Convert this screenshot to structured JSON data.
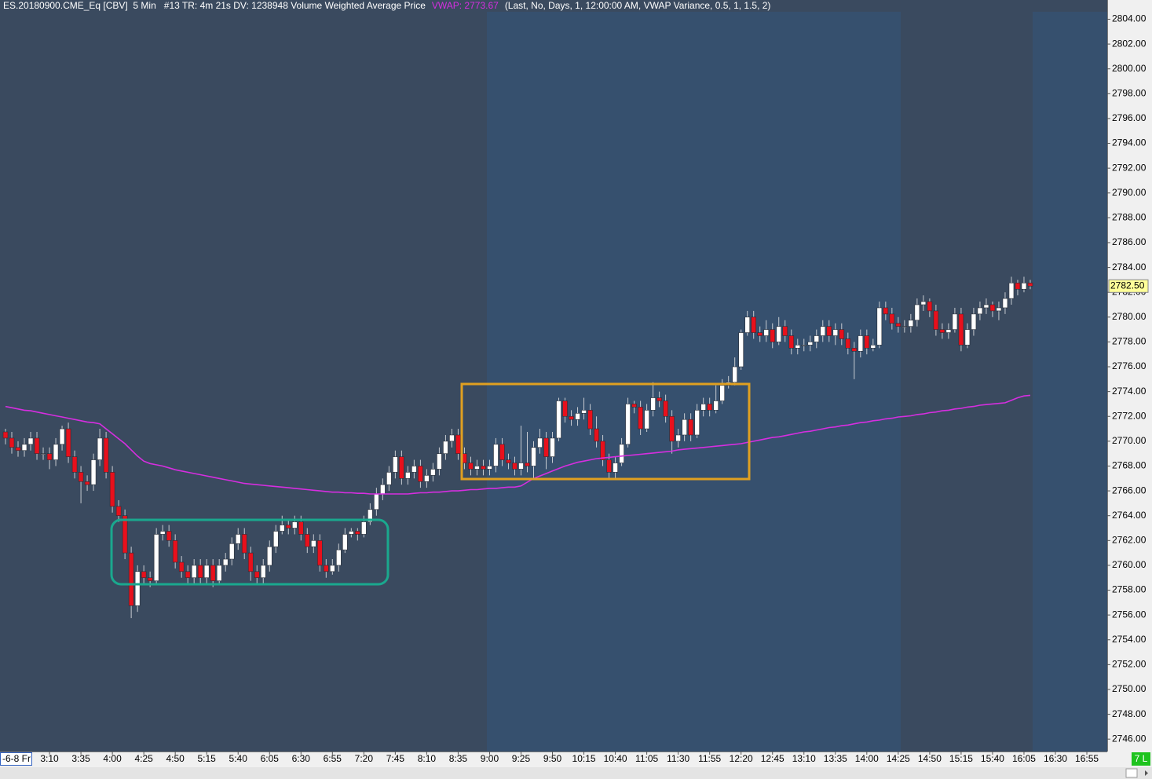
{
  "header": {
    "instrument": "ES.20180900.CME_Eq [CBV]  5 Min   #13 TR: 4m 21s DV: 1238948 Volume Weighted Average Price",
    "vwap_readout": "VWAP: 2773.67",
    "parameters": "(Last, No, Days, 1, 12:00:00 AM, VWAP Variance, 0.5, 1, 1.5, 2)"
  },
  "status": "7 L",
  "chart_data": {
    "type": "candlestick",
    "date_label": "-6-8 Fr",
    "categories": [
      null,
      null,
      null,
      null,
      null,
      null,
      null,
      "3:10",
      null,
      null,
      null,
      null,
      "3:35",
      null,
      null,
      null,
      null,
      "4:00",
      null,
      null,
      null,
      null,
      "4:25",
      null,
      null,
      null,
      null,
      "4:50",
      null,
      null,
      null,
      null,
      "5:15",
      null,
      null,
      null,
      null,
      "5:40",
      null,
      null,
      null,
      null,
      "6:05",
      null,
      null,
      null,
      null,
      "6:30",
      null,
      null,
      null,
      null,
      "6:55",
      null,
      null,
      null,
      null,
      "7:20",
      null,
      null,
      null,
      null,
      "7:45",
      null,
      null,
      null,
      null,
      "8:10",
      null,
      null,
      null,
      null,
      "8:35",
      null,
      null,
      null,
      null,
      "9:00",
      null,
      null,
      null,
      null,
      "9:25",
      null,
      null,
      null,
      null,
      "9:50",
      null,
      null,
      null,
      null,
      "10:15",
      null,
      null,
      null,
      null,
      "10:40",
      null,
      null,
      null,
      null,
      "11:05",
      null,
      null,
      null,
      null,
      "11:30",
      null,
      null,
      null,
      null,
      "11:55",
      null,
      null,
      null,
      null,
      "12:20",
      null,
      null,
      null,
      null,
      "12:45",
      null,
      null,
      null,
      null,
      "13:10",
      null,
      null,
      null,
      null,
      "13:35",
      null,
      null,
      null,
      null,
      "14:00",
      null,
      null,
      null,
      null,
      "14:25",
      null,
      null,
      null,
      null,
      "14:50",
      null,
      null,
      null,
      null,
      "15:15",
      null,
      null,
      null,
      null,
      "15:40",
      null,
      null,
      null,
      null,
      "16:05",
      null,
      null,
      null,
      null,
      "16:30",
      null,
      null,
      null,
      null,
      "16:55"
    ],
    "open": [
      2770.75,
      2770.25,
      2769.5,
      2769.25,
      2769.75,
      2770.25,
      2769,
      2769,
      2768.5,
      2769.75,
      2771,
      2768.75,
      2767.5,
      2766.75,
      2766.5,
      2768.5,
      2770.25,
      2767.5,
      2764.75,
      2764,
      2761,
      2756.75,
      2759.5,
      2759,
      2758.75,
      2762.5,
      2762.75,
      2762,
      2760.25,
      2759.5,
      2759,
      2760,
      2759,
      2760,
      2758.75,
      2760,
      2760.5,
      2761.75,
      2762.5,
      2761,
      2759.5,
      2759,
      2760,
      2761.5,
      2762.75,
      2763.25,
      2763,
      2763.5,
      2762.5,
      2761.5,
      2762,
      2760,
      2759.5,
      2760,
      2761.25,
      2762.5,
      2762.75,
      2762.5,
      2763.5,
      2764.5,
      2765.75,
      2766.5,
      2767.5,
      2768.75,
      2767,
      2767.5,
      2768,
      2766.75,
      2767.25,
      2767.75,
      2769,
      2770,
      2770.5,
      2769,
      2768.25,
      2767.75,
      2768,
      2767.75,
      2768,
      2769.75,
      2768.5,
      2768.25,
      2767.75,
      2768.25,
      2768,
      2769.5,
      2770.25,
      2768.75,
      2770.25,
      2773.25,
      2772,
      2771.75,
      2772.25,
      2772.5,
      2771,
      2770,
      2768.5,
      2767.5,
      2768.25,
      2769.75,
      2773,
      2772.75,
      2771,
      2772.5,
      2773.5,
      2773.25,
      2772,
      2770,
      2770.5,
      2771.75,
      2770.5,
      2772.5,
      2773,
      2772.5,
      2773.25,
      2774.5,
      2774.75,
      2776,
      2778.75,
      2780,
      2778.75,
      2778.5,
      2779,
      2778,
      2779.25,
      2778.5,
      2777.5,
      2777.75,
      2777.75,
      2778,
      2778.5,
      2779.25,
      2778.5,
      2779,
      2778.25,
      2777.5,
      2777.25,
      2778.5,
      2777.5,
      2777.75,
      2780.75,
      2780.25,
      2779.5,
      2779.25,
      2779.25,
      2779.75,
      2781,
      2781.25,
      2780.5,
      2779,
      2778.75,
      2779,
      2780.25,
      2777.75,
      2779,
      2780.25,
      2780.75,
      2781,
      2780.5,
      2780.75,
      2781.5,
      2782.75,
      2782.25,
      2782.75,
      null,
      null,
      null,
      null,
      null,
      null,
      null,
      null,
      null
    ],
    "high": [
      2771,
      2770.75,
      2770,
      2770.25,
      2770.75,
      2770.75,
      2769.5,
      2769.5,
      2770.25,
      2771.25,
      2771.5,
      2769.25,
      2768,
      2767.25,
      2769,
      2771,
      2770.75,
      2768,
      2765.25,
      2764.5,
      2761.5,
      2760,
      2760,
      2759.5,
      2763,
      2763.25,
      2763.25,
      2762.5,
      2760.75,
      2760,
      2760.5,
      2760.5,
      2760.5,
      2760.5,
      2760.5,
      2761,
      2762.25,
      2763,
      2763,
      2761.5,
      2760,
      2760.5,
      2762,
      2763.25,
      2764,
      2763.75,
      2764,
      2764,
      2763,
      2762.5,
      2762.5,
      2760.5,
      2760.5,
      2761.75,
      2763,
      2763,
      2763,
      2764,
      2765,
      2766.25,
      2767,
      2768,
      2769.25,
      2769.25,
      2768,
      2768.5,
      2768.5,
      2767.75,
      2768.25,
      2769.5,
      2770.5,
      2771,
      2771,
      2769.5,
      2768.75,
      2768.5,
      2768.5,
      2768.5,
      2770.25,
      2770.25,
      2769,
      2768.75,
      2771.25,
      2770.75,
      2770,
      2771,
      2770.75,
      2770.75,
      2773.5,
      2773.5,
      2772.5,
      2772.75,
      2773.5,
      2773,
      2772,
      2770.5,
      2769,
      2768.75,
      2770.25,
      2773.5,
      2773.25,
      2773.25,
      2773,
      2774.75,
      2774,
      2773.75,
      2772.5,
      2771,
      2772.25,
      2772.25,
      2773,
      2773.5,
      2773.5,
      2774.5,
      2775,
      2775.25,
      2776.75,
      2779,
      2780.5,
      2780.5,
      2779.25,
      2779.75,
      2779.5,
      2780,
      2779.75,
      2779,
      2778.25,
      2778.25,
      2778.5,
      2779,
      2779.75,
      2779.75,
      2779.5,
      2779.5,
      2778.75,
      2778,
      2779,
      2779,
      2778.25,
      2781.25,
      2781.25,
      2780.75,
      2780,
      2779.75,
      2780.25,
      2781.5,
      2781.75,
      2781.5,
      2781,
      2779.5,
      2779.5,
      2780.75,
      2780.75,
      2779.5,
      2780.75,
      2781.25,
      2781.5,
      2781.25,
      2781.25,
      2782,
      2783.25,
      2783,
      2783.25,
      2783,
      null,
      null,
      null,
      null,
      null,
      null,
      null,
      null,
      null
    ],
    "low": [
      2769.75,
      2769,
      2768.75,
      2768.75,
      2769.25,
      2768.5,
      2768.5,
      2767.75,
      2768,
      2769.25,
      2768.25,
      2767,
      2765,
      2766,
      2766,
      2768,
      2767,
      2764.25,
      2763.5,
      2760.5,
      2755.75,
      2756.25,
      2758.5,
      2758.25,
      2758.5,
      2762,
      2761.5,
      2759.75,
      2759,
      2758.5,
      2758.5,
      2758.5,
      2758.5,
      2758.25,
      2758.5,
      2759.5,
      2760,
      2761.25,
      2760.5,
      2758.75,
      2758.5,
      2758.5,
      2759.5,
      2761,
      2762.5,
      2762.5,
      2762.5,
      2762,
      2761,
      2761,
      2759.5,
      2759,
      2759.25,
      2759.5,
      2761,
      2762.25,
      2762,
      2762.25,
      2763.25,
      2764,
      2765.25,
      2766,
      2767,
      2766.5,
      2766.5,
      2767,
      2766.25,
      2766.25,
      2766.75,
      2767.25,
      2768.5,
      2769.5,
      2768.5,
      2767.75,
      2767.25,
      2767.25,
      2767.25,
      2767.25,
      2767.5,
      2768,
      2767.75,
      2767.25,
      2767.25,
      2767.5,
      2767,
      2769,
      2767.75,
      2768.25,
      2770,
      2771.5,
      2771.25,
      2771.25,
      2771.75,
      2770.5,
      2769.5,
      2768,
      2767,
      2767,
      2768,
      2769.5,
      2772.25,
      2770.5,
      2770.75,
      2772,
      2772.75,
      2771.5,
      2769,
      2769.5,
      2770,
      2770,
      2770.25,
      2772,
      2772,
      2772.25,
      2773,
      2774.25,
      2774.5,
      2775.75,
      2778.5,
      2778.25,
      2778,
      2778,
      2777.5,
      2777.75,
      2778,
      2777,
      2777,
      2777.25,
      2777.25,
      2777.5,
      2778,
      2778,
      2777.75,
      2777.75,
      2777,
      2775,
      2776.75,
      2777,
      2777.25,
      2777.5,
      2779.75,
      2779,
      2778.75,
      2778.75,
      2778.75,
      2779.25,
      2780.5,
      2780,
      2778.5,
      2778.25,
      2778.25,
      2778.75,
      2777.25,
      2777.5,
      2778.5,
      2779.75,
      2780.25,
      2780,
      2779.75,
      2780.25,
      2781,
      2781.75,
      2782,
      2782.25,
      null,
      null,
      null,
      null,
      null,
      null,
      null,
      null,
      null
    ],
    "close": [
      2770.25,
      2769.5,
      2769.25,
      2769.75,
      2770.25,
      2769,
      2769,
      2768.5,
      2769.75,
      2771,
      2768.75,
      2767.5,
      2766.75,
      2766.5,
      2768.5,
      2770.25,
      2767.5,
      2764.75,
      2764,
      2761,
      2756.75,
      2759.5,
      2759,
      2758.75,
      2762.5,
      2762.75,
      2762,
      2760.25,
      2759.5,
      2759,
      2760,
      2759,
      2760,
      2758.75,
      2760,
      2760.5,
      2761.75,
      2762.5,
      2761,
      2759.5,
      2759,
      2760,
      2761.5,
      2762.75,
      2763.25,
      2763,
      2763.5,
      2762.5,
      2761.5,
      2762,
      2760,
      2759.5,
      2760,
      2761.25,
      2762.5,
      2762.75,
      2762.5,
      2763.5,
      2764.5,
      2765.75,
      2766.5,
      2767.5,
      2768.75,
      2767,
      2767.5,
      2768,
      2766.75,
      2767.25,
      2767.75,
      2769,
      2770,
      2770.5,
      2769,
      2768.25,
      2767.75,
      2768,
      2767.75,
      2768,
      2769.75,
      2768.5,
      2768.25,
      2767.75,
      2768.25,
      2768,
      2769.5,
      2770.25,
      2768.75,
      2770.25,
      2773.25,
      2772,
      2771.75,
      2772.25,
      2772.5,
      2771,
      2770,
      2768.5,
      2767.5,
      2768.25,
      2769.75,
      2773,
      2772.75,
      2771,
      2772.5,
      2773.5,
      2773.25,
      2772,
      2770,
      2770.5,
      2771.75,
      2770.5,
      2772.5,
      2773,
      2772.5,
      2773.25,
      2774.5,
      2774.75,
      2776,
      2778.75,
      2780,
      2778.75,
      2778.5,
      2779,
      2778,
      2779.25,
      2778.5,
      2777.5,
      2777.75,
      2777.75,
      2778,
      2778.5,
      2779.25,
      2778.5,
      2779,
      2778.25,
      2777.5,
      2777.25,
      2778.5,
      2777.5,
      2777.75,
      2780.75,
      2780.25,
      2779.5,
      2779.25,
      2779.25,
      2779.75,
      2781,
      2781.25,
      2780.5,
      2779,
      2778.75,
      2779,
      2780.25,
      2777.75,
      2779,
      2780.25,
      2780.75,
      2781,
      2780.5,
      2780.75,
      2781.5,
      2782.75,
      2782.25,
      2782.75,
      2782.5,
      null,
      null,
      null,
      null,
      null,
      null,
      null,
      null,
      null
    ],
    "up_color": "#ffffff",
    "down_color": "#e8101c",
    "wick_color": "#c8ccd2",
    "vwap": {
      "color": "#d62ee0",
      "values": [
        2772.8,
        2772.7,
        2772.6,
        2772.5,
        2772.45,
        2772.35,
        2772.25,
        2772.15,
        2772.05,
        2771.95,
        2771.85,
        2771.75,
        2771.65,
        2771.55,
        2771.5,
        2771.4,
        2771,
        2770.6,
        2770.2,
        2769.8,
        2769.3,
        2768.8,
        2768.4,
        2768.2,
        2768.1,
        2768,
        2767.85,
        2767.7,
        2767.6,
        2767.5,
        2767.4,
        2767.3,
        2767.2,
        2767.1,
        2767,
        2766.9,
        2766.8,
        2766.7,
        2766.6,
        2766.55,
        2766.5,
        2766.45,
        2766.4,
        2766.35,
        2766.3,
        2766.25,
        2766.2,
        2766.15,
        2766.1,
        2766.05,
        2766,
        2765.95,
        2765.9,
        2765.9,
        2765.85,
        2765.85,
        2765.8,
        2765.8,
        2765.75,
        2765.75,
        2765.75,
        2765.75,
        2765.75,
        2765.75,
        2765.75,
        2765.8,
        2765.85,
        2765.85,
        2765.9,
        2765.9,
        2765.95,
        2766,
        2766,
        2766.05,
        2766.1,
        2766.1,
        2766.15,
        2766.2,
        2766.2,
        2766.25,
        2766.3,
        2766.3,
        2766.4,
        2766.7,
        2767,
        2767.2,
        2767.4,
        2767.6,
        2767.8,
        2768,
        2768.15,
        2768.3,
        2768.4,
        2768.5,
        2768.6,
        2768.65,
        2768.7,
        2768.75,
        2768.8,
        2768.85,
        2768.9,
        2768.95,
        2769,
        2769.05,
        2769.1,
        2769.15,
        2769.2,
        2769.3,
        2769.35,
        2769.4,
        2769.45,
        2769.5,
        2769.55,
        2769.6,
        2769.65,
        2769.7,
        2769.75,
        2769.8,
        2769.9,
        2770,
        2770.1,
        2770.2,
        2770.3,
        2770.35,
        2770.45,
        2770.55,
        2770.65,
        2770.75,
        2770.8,
        2770.9,
        2771,
        2771.1,
        2771.15,
        2771.25,
        2771.3,
        2771.4,
        2771.5,
        2771.55,
        2771.65,
        2771.7,
        2771.8,
        2771.85,
        2771.95,
        2772,
        2772.05,
        2772.15,
        2772.2,
        2772.3,
        2772.35,
        2772.45,
        2772.5,
        2772.6,
        2772.65,
        2772.75,
        2772.8,
        2772.9,
        2772.95,
        2773,
        2773.05,
        2773.1,
        2773.3,
        2773.5,
        2773.65,
        2773.7,
        null,
        null,
        null,
        null,
        null,
        null,
        null,
        null,
        null
      ]
    },
    "last_price": {
      "value": 2782.5,
      "label": "2782.50"
    },
    "ylim": [
      2745,
      2804.6
    ],
    "yticks": [
      {
        "value": 2746,
        "label": "2746.00"
      },
      {
        "value": 2748,
        "label": "2748.00"
      },
      {
        "value": 2750,
        "label": "2750.00"
      },
      {
        "value": 2752,
        "label": "2752.00"
      },
      {
        "value": 2754,
        "label": "2754.00"
      },
      {
        "value": 2756,
        "label": "2756.00"
      },
      {
        "value": 2758,
        "label": "2758.00"
      },
      {
        "value": 2760,
        "label": "2760.00"
      },
      {
        "value": 2762,
        "label": "2762.00"
      },
      {
        "value": 2764,
        "label": "2764.00"
      },
      {
        "value": 2766,
        "label": "2766.00"
      },
      {
        "value": 2768,
        "label": "2768.00"
      },
      {
        "value": 2770,
        "label": "2770.00"
      },
      {
        "value": 2772,
        "label": "2772.00"
      },
      {
        "value": 2774,
        "label": "2774.00"
      },
      {
        "value": 2776,
        "label": "2776.00"
      },
      {
        "value": 2778,
        "label": "2778.00"
      },
      {
        "value": 2780,
        "label": "2780.00"
      },
      {
        "value": 2782,
        "label": "2782.00"
      },
      {
        "value": 2784,
        "label": "2784.00"
      },
      {
        "value": 2786,
        "label": "2786.00"
      },
      {
        "value": 2788,
        "label": "2788.00"
      },
      {
        "value": 2790,
        "label": "2790.00"
      },
      {
        "value": 2792,
        "label": "2792.00"
      },
      {
        "value": 2794,
        "label": "2794.00"
      },
      {
        "value": 2796,
        "label": "2796.00"
      },
      {
        "value": 2798,
        "label": "2798.00"
      },
      {
        "value": 2800,
        "label": "2800.00"
      },
      {
        "value": 2802,
        "label": "2802.00"
      },
      {
        "value": 2804,
        "label": "2804.00"
      }
    ]
  }
}
